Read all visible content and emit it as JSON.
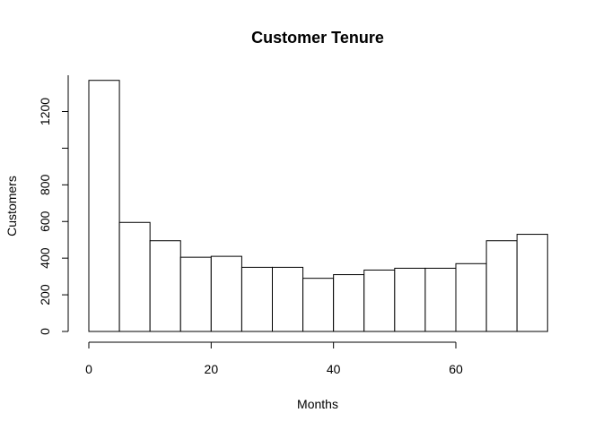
{
  "chart_data": {
    "type": "bar",
    "title": "Customer Tenure",
    "xlabel": "Months",
    "ylabel": "Customers",
    "bin_edges": [
      0,
      5,
      10,
      15,
      20,
      25,
      30,
      35,
      40,
      45,
      50,
      55,
      60,
      65,
      70,
      75
    ],
    "values": [
      1370,
      595,
      495,
      405,
      410,
      350,
      350,
      290,
      310,
      335,
      345,
      345,
      370,
      495,
      530
    ],
    "xlim": [
      0,
      75
    ],
    "ylim": [
      0,
      1400
    ],
    "x_ticks": [
      0,
      20,
      40,
      60
    ],
    "x_tick_labels": [
      "0",
      "20",
      "40",
      "60"
    ],
    "y_ticks": [
      0,
      200,
      400,
      600,
      800,
      1000,
      1200
    ],
    "y_tick_labels": [
      "0",
      "200",
      "400",
      "600",
      "800",
      "",
      "1200"
    ],
    "grid": false,
    "colors": {
      "bar_fill": "#ffffff",
      "bar_stroke": "#000000"
    }
  }
}
